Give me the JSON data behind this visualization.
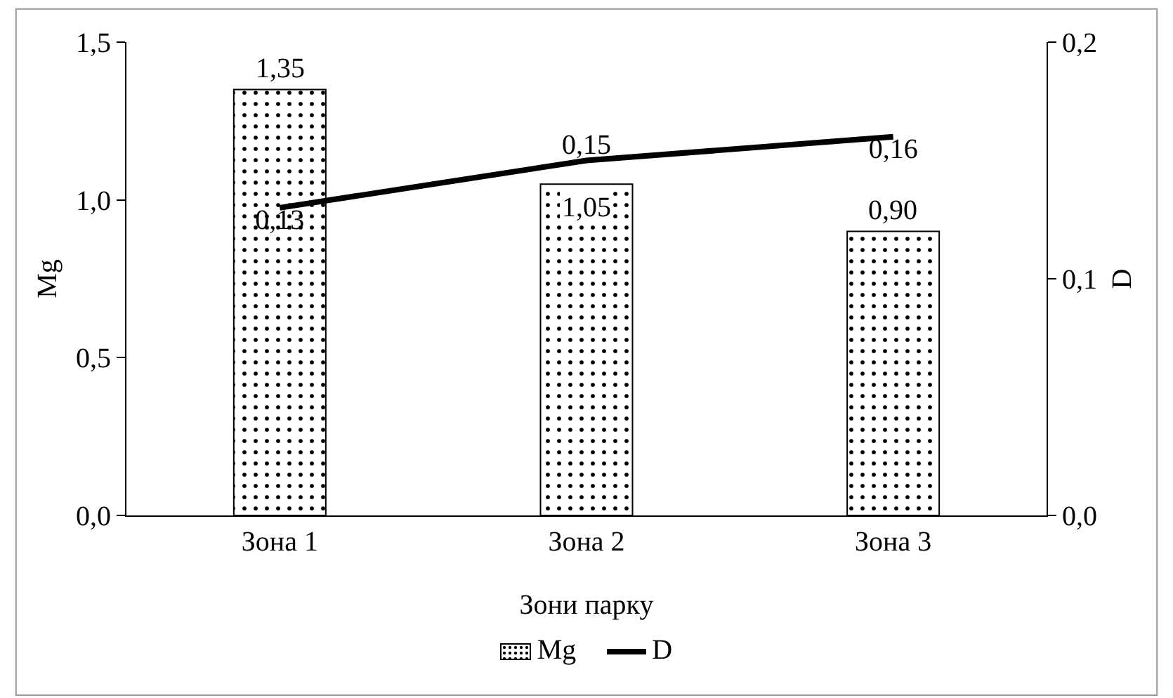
{
  "chart_data": {
    "type": "bar",
    "xlabel": "Зони парку",
    "ylabel": "Mg",
    "y2label": "D",
    "categories": [
      "Зона 1",
      "Зона 2",
      "Зона 3"
    ],
    "series": [
      {
        "name": "Mg",
        "color": "#000000",
        "values": [
          1.35,
          1.05,
          0.9
        ],
        "value_labels": [
          "1,35",
          "1,05",
          "0,90"
        ]
      },
      {
        "name": "D",
        "type": "line",
        "axis": "y2",
        "color": "#000000",
        "values": [
          0.13,
          0.15,
          0.16
        ],
        "value_labels": [
          "0,13",
          "0,15",
          "0,16"
        ]
      }
    ],
    "ylim": [
      0,
      1.5
    ],
    "yticks": [
      {
        "value": 0,
        "label": "0,0"
      },
      {
        "value": 0.5,
        "label": "0,5"
      },
      {
        "value": 1,
        "label": "1,0"
      },
      {
        "value": 1.5,
        "label": "1,5"
      }
    ],
    "y2lim": [
      0,
      0.2
    ],
    "y2ticks": [
      {
        "value": 0,
        "label": "0,0"
      },
      {
        "value": 0.1,
        "label": "0,1"
      },
      {
        "value": 0.2,
        "label": "0,2"
      }
    ],
    "legend": "bottom",
    "grid": false
  }
}
